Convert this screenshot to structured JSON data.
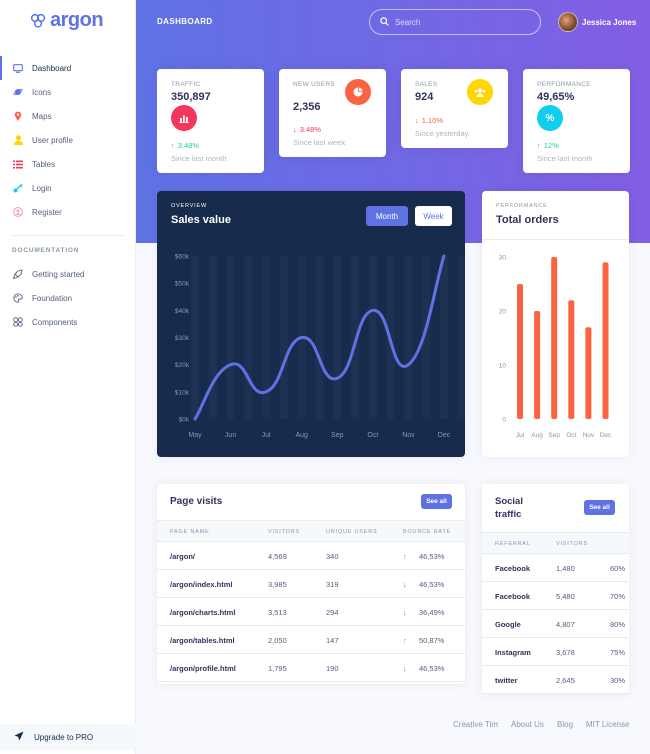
{
  "brand": {
    "name": "argon"
  },
  "sidebar": {
    "items": [
      {
        "label": "Dashboard",
        "icon": "tv-icon",
        "color": "#5e72e4"
      },
      {
        "label": "Icons",
        "icon": "planet-icon",
        "color": "#5e72e4"
      },
      {
        "label": "Maps",
        "icon": "pin-icon",
        "color": "#fb6340"
      },
      {
        "label": "User profile",
        "icon": "user-icon",
        "color": "#ffd600"
      },
      {
        "label": "Tables",
        "icon": "list-icon",
        "color": "#f5365c"
      },
      {
        "label": "Login",
        "icon": "key-icon",
        "color": "#11cdef"
      },
      {
        "label": "Register",
        "icon": "circle-user-icon",
        "color": "#f3a4b5"
      }
    ],
    "section_heading": "DOCUMENTATION",
    "doc_items": [
      {
        "label": "Getting started",
        "icon": "spaceship-icon"
      },
      {
        "label": "Foundation",
        "icon": "palette-icon"
      },
      {
        "label": "Components",
        "icon": "ui-icon"
      }
    ],
    "upgrade_label": "Upgrade to PRO"
  },
  "header": {
    "title": "DASHBOARD",
    "search_placeholder": "Search",
    "user_name": "Jessica Jones"
  },
  "stats": [
    {
      "title": "TRAFFIC",
      "value": "350,897",
      "change": "3.48%",
      "trend": "up",
      "since": "Since last month",
      "icon": "chart-bar-icon",
      "color": "#f5365c"
    },
    {
      "title": "NEW USERS",
      "value": "2,356",
      "change": "3.48%",
      "trend": "down",
      "since": "Since last week",
      "icon": "chart-pie-icon",
      "color": "#fb6340"
    },
    {
      "title": "SALES",
      "value": "924",
      "change": "1.10%",
      "trend": "down-orange",
      "since": "Since yesterday",
      "icon": "users-icon",
      "color": "#ffd600"
    },
    {
      "title": "PERFORMANCE",
      "value": "49,65%",
      "change": "12%",
      "trend": "up",
      "since": "Since last month",
      "icon": "percent-icon",
      "color": "#11cdef"
    }
  ],
  "sales_card": {
    "overline": "OVERVIEW",
    "title": "Sales value",
    "tab_month": "Month",
    "tab_week": "Week"
  },
  "orders_card": {
    "overline": "PERFORMANCE",
    "title": "Total orders"
  },
  "chart_data": [
    {
      "type": "line",
      "title": "Sales value",
      "categories": [
        "May",
        "Jun",
        "Jul",
        "Aug",
        "Sep",
        "Oct",
        "Nov",
        "Dec"
      ],
      "values": [
        0,
        20,
        10,
        30,
        15,
        40,
        20,
        60
      ],
      "y_ticks": [
        "$0k",
        "$10k",
        "$20k",
        "$30k",
        "$40k",
        "$50k",
        "$60k"
      ],
      "ylim": [
        0,
        60
      ],
      "color": "#5e72e4"
    },
    {
      "type": "bar",
      "title": "Total orders",
      "categories": [
        "Jul",
        "Aug",
        "Sep",
        "Oct",
        "Nov",
        "Dec"
      ],
      "values": [
        25,
        20,
        30,
        22,
        17,
        29
      ],
      "y_ticks": [
        "0",
        "10",
        "20",
        "30"
      ],
      "ylim": [
        0,
        30
      ],
      "color": "#fb6340"
    }
  ],
  "page_visits": {
    "title": "Page visits",
    "see_all": "See all",
    "columns": [
      "PAGE NAME",
      "VISITORS",
      "UNIQUE USERS",
      "BOUNCE RATE"
    ],
    "rows": [
      {
        "page": "/argon/",
        "visitors": "4,569",
        "unique": "340",
        "bounce": "46,53%",
        "trend": "up"
      },
      {
        "page": "/argon/index.html",
        "visitors": "3,985",
        "unique": "319",
        "bounce": "46,53%",
        "trend": "down"
      },
      {
        "page": "/argon/charts.html",
        "visitors": "3,513",
        "unique": "294",
        "bounce": "36,49%",
        "trend": "down"
      },
      {
        "page": "/argon/tables.html",
        "visitors": "2,050",
        "unique": "147",
        "bounce": "50,87%",
        "trend": "up"
      },
      {
        "page": "/argon/profile.html",
        "visitors": "1,795",
        "unique": "190",
        "bounce": "46,53%",
        "trend": "down"
      }
    ]
  },
  "social": {
    "title_line1": "Social",
    "title_line2": "traffic",
    "see_all": "See all",
    "columns": [
      "REFERRAL",
      "VISITORS"
    ],
    "rows": [
      {
        "name": "Facebook",
        "visitors": "1,480",
        "pct": "60%"
      },
      {
        "name": "Facebook",
        "visitors": "5,480",
        "pct": "70%"
      },
      {
        "name": "Google",
        "visitors": "4,807",
        "pct": "80%"
      },
      {
        "name": "Instagram",
        "visitors": "3,678",
        "pct": "75%"
      },
      {
        "name": "twitter",
        "visitors": "2,645",
        "pct": "30%"
      }
    ]
  },
  "footer": {
    "links": [
      "Creative Tim",
      "About Us",
      "Blog",
      "MIT License"
    ]
  }
}
